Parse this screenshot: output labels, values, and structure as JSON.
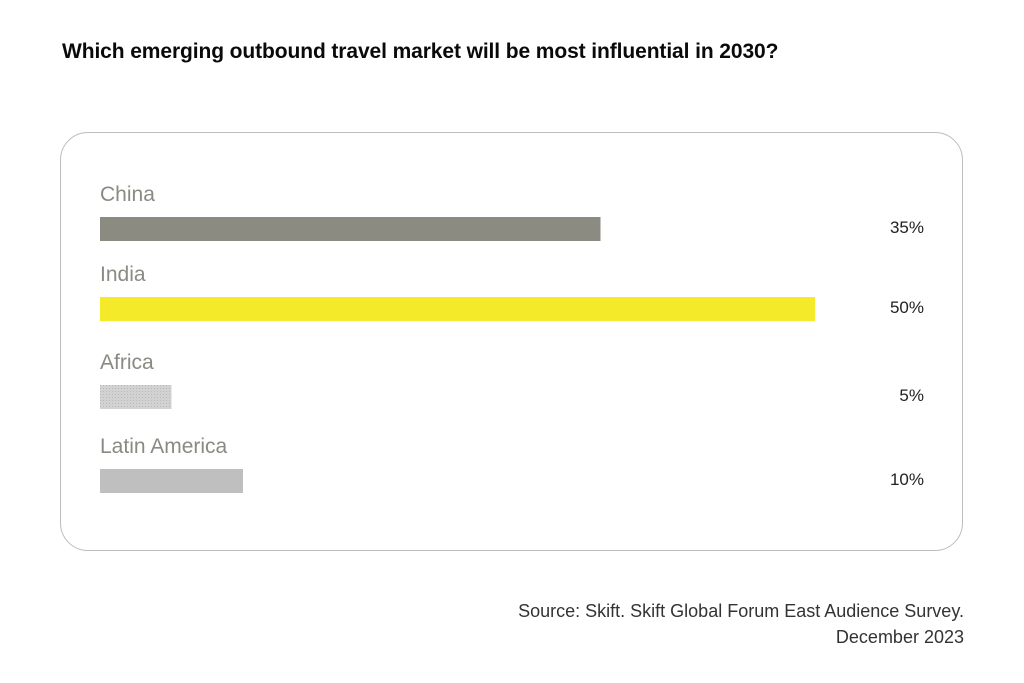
{
  "title": "Which emerging outbound travel market will be most influential in 2030?",
  "source": {
    "line1": "Source: Skift. Skift Global Forum East Audience Survey.",
    "line2": "December 2023"
  },
  "chart_data": {
    "type": "bar",
    "orientation": "horizontal",
    "title": "Which emerging outbound travel market will be most influential in 2030?",
    "categories": [
      "China",
      "India",
      "Africa",
      "Latin America"
    ],
    "values": [
      35,
      50,
      5,
      10
    ],
    "value_labels": [
      "35%",
      "50%",
      "5%",
      "10%"
    ],
    "unit": "%",
    "xlim": [
      0,
      50
    ],
    "grid": false,
    "legend": "none",
    "colors": [
      "#8c8b82",
      "#f5ea2a",
      "#cfcfcf",
      "#bfbfbf"
    ]
  }
}
